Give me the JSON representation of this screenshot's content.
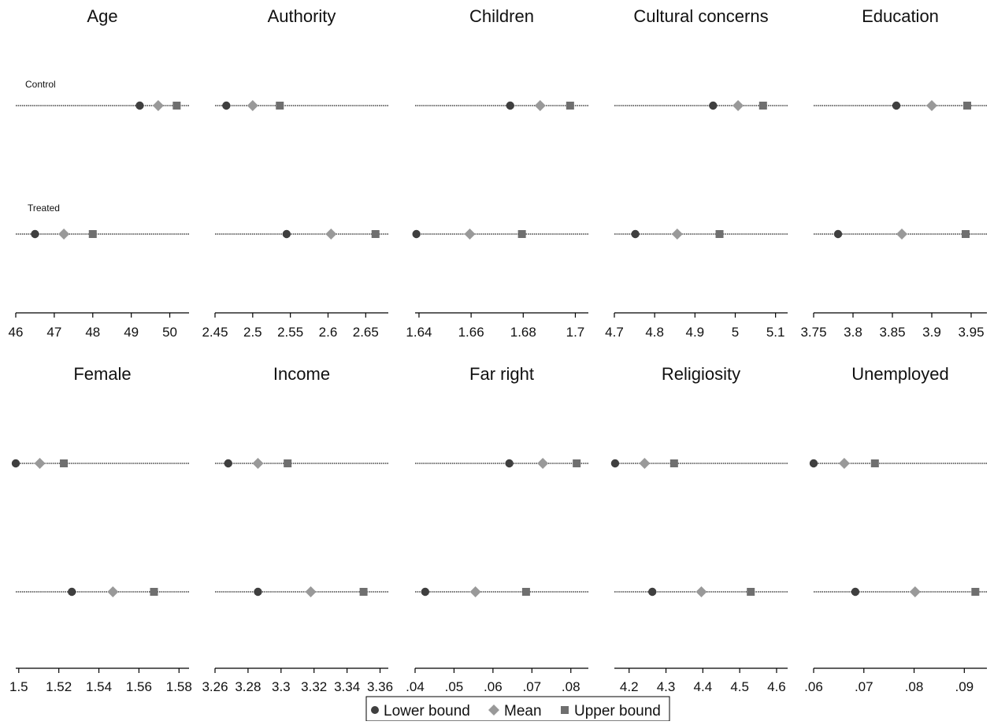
{
  "chart_data": {
    "type": "scatter",
    "row_labels": [
      "Control",
      "Treated"
    ],
    "legend": {
      "placement": "bottom",
      "entries": [
        {
          "label": "Lower bound",
          "marker": "circle",
          "color": "#3f3f3f"
        },
        {
          "label": "Mean",
          "marker": "diamond",
          "color": "#999999"
        },
        {
          "label": "Upper bound",
          "marker": "square",
          "color": "#6f6f6f"
        }
      ]
    },
    "panels": [
      {
        "title": "Age",
        "xlim": [
          46,
          50.5
        ],
        "ticks": [
          46,
          47,
          48,
          49,
          50
        ],
        "tick_labels": [
          "46",
          "47",
          "48",
          "49",
          "50"
        ],
        "control": {
          "lower": 49.22,
          "mean": 49.7,
          "upper": 50.18
        },
        "treated": {
          "lower": 46.5,
          "mean": 47.25,
          "upper": 48.0
        }
      },
      {
        "title": "Authority",
        "xlim": [
          2.45,
          2.68
        ],
        "ticks": [
          2.45,
          2.5,
          2.55,
          2.6,
          2.65
        ],
        "tick_labels": [
          "2.45",
          "2.5",
          "2.55",
          "2.6",
          "2.65"
        ],
        "control": {
          "lower": 2.465,
          "mean": 2.5,
          "upper": 2.536
        },
        "treated": {
          "lower": 2.545,
          "mean": 2.604,
          "upper": 2.663
        }
      },
      {
        "title": "Children",
        "xlim": [
          1.6385,
          1.705
        ],
        "ticks": [
          1.64,
          1.66,
          1.68,
          1.7
        ],
        "tick_labels": [
          "1.64",
          "1.66",
          "1.68",
          "1.7"
        ],
        "control": {
          "lower": 1.675,
          "mean": 1.6865,
          "upper": 1.698
        },
        "treated": {
          "lower": 1.639,
          "mean": 1.6595,
          "upper": 1.6795
        }
      },
      {
        "title": "Cultural concerns",
        "xlim": [
          4.7,
          5.13
        ],
        "ticks": [
          4.7,
          4.8,
          4.9,
          5.0,
          5.1
        ],
        "tick_labels": [
          "4.7",
          "4.8",
          "4.9",
          "5",
          "5.1"
        ],
        "control": {
          "lower": 4.945,
          "mean": 5.007,
          "upper": 5.069
        },
        "treated": {
          "lower": 4.752,
          "mean": 4.856,
          "upper": 4.961
        }
      },
      {
        "title": "Education",
        "xlim": [
          3.75,
          3.97
        ],
        "ticks": [
          3.75,
          3.8,
          3.85,
          3.9,
          3.95
        ],
        "tick_labels": [
          "3.75",
          "3.8",
          "3.85",
          "3.9",
          "3.95"
        ],
        "control": {
          "lower": 3.855,
          "mean": 3.9,
          "upper": 3.945
        },
        "treated": {
          "lower": 3.781,
          "mean": 3.862,
          "upper": 3.943
        }
      },
      {
        "title": "Female",
        "xlim": [
          1.4985,
          1.585
        ],
        "ticks": [
          1.5,
          1.52,
          1.54,
          1.56,
          1.58
        ],
        "tick_labels": [
          "1.5",
          "1.52",
          "1.54",
          "1.56",
          "1.58"
        ],
        "control": {
          "lower": 1.4985,
          "mean": 1.5105,
          "upper": 1.5225
        },
        "treated": {
          "lower": 1.5265,
          "mean": 1.547,
          "upper": 1.5675
        }
      },
      {
        "title": "Income",
        "xlim": [
          3.26,
          3.365
        ],
        "ticks": [
          3.26,
          3.28,
          3.3,
          3.32,
          3.34,
          3.36
        ],
        "tick_labels": [
          "3.26",
          "3.28",
          "3.3",
          "3.32",
          "3.34",
          "3.36"
        ],
        "control": {
          "lower": 3.268,
          "mean": 3.286,
          "upper": 3.304
        },
        "treated": {
          "lower": 3.286,
          "mean": 3.318,
          "upper": 3.35
        }
      },
      {
        "title": "Far right",
        "xlim": [
          0.04,
          0.0845
        ],
        "ticks": [
          0.04,
          0.05,
          0.06,
          0.07,
          0.08
        ],
        "tick_labels": [
          ".04",
          ".05",
          ".06",
          ".07",
          ".08"
        ],
        "control": {
          "lower": 0.0642,
          "mean": 0.0728,
          "upper": 0.0815
        },
        "treated": {
          "lower": 0.0426,
          "mean": 0.0555,
          "upper": 0.0685
        }
      },
      {
        "title": "Religiosity",
        "xlim": [
          4.16,
          4.63
        ],
        "ticks": [
          4.2,
          4.3,
          4.4,
          4.5,
          4.6
        ],
        "tick_labels": [
          "4.2",
          "4.3",
          "4.4",
          "4.5",
          "4.6"
        ],
        "control": {
          "lower": 4.162,
          "mean": 4.242,
          "upper": 4.322
        },
        "treated": {
          "lower": 4.263,
          "mean": 4.396,
          "upper": 4.53
        }
      },
      {
        "title": "Unemployed",
        "xlim": [
          0.06,
          0.0945
        ],
        "ticks": [
          0.06,
          0.07,
          0.08,
          0.09
        ],
        "tick_labels": [
          ".06",
          ".07",
          ".08",
          ".09"
        ],
        "control": {
          "lower": 0.06,
          "mean": 0.0661,
          "upper": 0.0722
        },
        "treated": {
          "lower": 0.0683,
          "mean": 0.0802,
          "upper": 0.0922
        }
      }
    ]
  }
}
